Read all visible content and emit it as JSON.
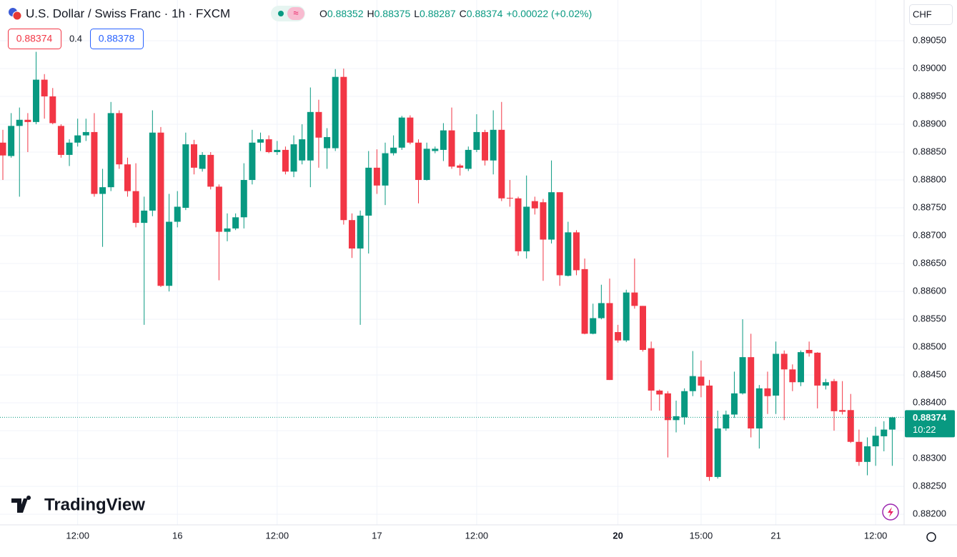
{
  "header": {
    "title": "U.S. Dollar / Swiss Franc · 1h · FXCM",
    "o": "O",
    "h": "H",
    "l": "L",
    "c": "C",
    "change": "+0.00022 (+0.02%)",
    "spread": 0.4,
    "ask": 0.88378,
    "currency": "CHF",
    "countdown": "10:22",
    "logo": "TradingView"
  },
  "chart_data": {
    "type": "candlestick",
    "up_color": "#089981",
    "down_color": "#f23645",
    "grid": true,
    "categories": [
      null,
      null,
      null,
      null,
      null,
      null,
      null,
      null,
      null,
      "12:00",
      null,
      null,
      null,
      null,
      null,
      null,
      null,
      null,
      null,
      null,
      null,
      "16",
      null,
      null,
      null,
      null,
      null,
      null,
      null,
      null,
      null,
      null,
      null,
      "12:00",
      null,
      null,
      null,
      null,
      null,
      null,
      null,
      null,
      null,
      null,
      null,
      "17",
      null,
      null,
      null,
      null,
      null,
      null,
      null,
      null,
      null,
      null,
      null,
      "12:00",
      null,
      null,
      null,
      null,
      null,
      null,
      null,
      null,
      null,
      null,
      null,
      null,
      null,
      null,
      null,
      null,
      "20",
      null,
      null,
      null,
      null,
      null,
      null,
      null,
      null,
      null,
      "15:00",
      null,
      null,
      null,
      null,
      null,
      null,
      null,
      null,
      "21",
      null,
      null,
      null,
      null,
      null,
      null,
      null,
      null,
      null,
      null,
      null,
      "12:00",
      null,
      null
    ],
    "open": [
      0.88867,
      0.88843,
      0.88897,
      0.88908,
      0.88904,
      0.8898,
      0.8895,
      0.88897,
      0.88845,
      0.88867,
      0.8888,
      0.88886,
      0.88775,
      0.88787,
      0.8892,
      0.88828,
      0.8878,
      0.88723,
      0.88745,
      0.88885,
      0.8861,
      0.88725,
      0.8875,
      0.88864,
      0.8882,
      0.88845,
      0.88788,
      0.88707,
      0.88713,
      0.88733,
      0.888,
      0.88867,
      0.88873,
      0.8885,
      0.88854,
      0.88815,
      0.88835,
      0.88835,
      0.88922,
      0.88857,
      0.88857,
      0.88985,
      0.88728,
      0.88677,
      0.88736,
      0.88822,
      0.8879,
      0.88848,
      0.88858,
      0.88912,
      0.88867,
      0.888,
      0.88852,
      0.88854,
      0.88889,
      0.88826,
      0.8882,
      0.88854,
      0.88886,
      0.88835,
      0.8889,
      0.88768,
      0.88767,
      0.88672,
      0.88762,
      0.8876,
      0.88693,
      0.88778,
      0.88628,
      0.88706,
      0.8864,
      0.88524,
      0.88552,
      0.88579,
      0.88527,
      0.88512,
      0.88598,
      0.88574,
      0.88498,
      0.88422,
      0.88417,
      0.88369,
      0.88374,
      0.88421,
      0.88447,
      0.88431,
      0.88267,
      0.88354,
      0.88379,
      0.88417,
      0.88482,
      0.88354,
      0.88426,
      0.88413,
      0.88488,
      0.8846,
      0.88437,
      0.88495,
      0.8849,
      0.88431,
      0.88439,
      0.88387,
      0.88387,
      0.8833,
      0.88294,
      0.88322,
      0.8834,
      0.88352
    ],
    "high": [
      0.8889,
      0.8892,
      0.8893,
      0.8892,
      0.8903,
      0.8899,
      0.88965,
      0.889,
      0.88873,
      0.8891,
      0.8891,
      0.8892,
      0.8882,
      0.8894,
      0.88925,
      0.8884,
      0.8883,
      0.8877,
      0.88925,
      0.88895,
      0.88775,
      0.8878,
      0.88885,
      0.88872,
      0.8885,
      0.8885,
      0.88792,
      0.8874,
      0.8874,
      0.8883,
      0.8889,
      0.88885,
      0.8888,
      0.8887,
      0.8886,
      0.8888,
      0.889,
      0.88966,
      0.88944,
      0.88893,
      0.88999,
      0.89,
      0.8874,
      0.88745,
      0.88852,
      0.88855,
      0.88867,
      0.8888,
      0.88915,
      0.88916,
      0.88873,
      0.88867,
      0.8886,
      0.88902,
      0.8893,
      0.88829,
      0.8886,
      0.88918,
      0.8889,
      0.88925,
      0.8894,
      0.888,
      0.8877,
      0.88808,
      0.8877,
      0.88766,
      0.88835,
      0.88778,
      0.88725,
      0.8871,
      0.88659,
      0.88578,
      0.88612,
      0.88623,
      0.8854,
      0.88603,
      0.88659,
      0.88574,
      0.8851,
      0.88424,
      0.88421,
      0.88404,
      0.88426,
      0.88493,
      0.88476,
      0.88441,
      0.88386,
      0.88386,
      0.88456,
      0.8855,
      0.88524,
      0.88432,
      0.88456,
      0.8851,
      0.88494,
      0.88469,
      0.88494,
      0.8851,
      0.88491,
      0.88443,
      0.88443,
      0.88439,
      0.88416,
      0.88352,
      0.88338,
      0.88357,
      0.88367,
      0.88375
    ],
    "low": [
      0.888,
      0.8884,
      0.8877,
      0.8885,
      0.889,
      0.8891,
      0.889,
      0.8884,
      0.88825,
      0.8886,
      0.8887,
      0.8877,
      0.8868,
      0.8878,
      0.8882,
      0.8877,
      0.88715,
      0.8854,
      0.88735,
      0.88608,
      0.886,
      0.88715,
      0.88746,
      0.8881,
      0.88815,
      0.88783,
      0.8862,
      0.8869,
      0.8871,
      0.88713,
      0.88792,
      0.88852,
      0.88848,
      0.88845,
      0.8881,
      0.88805,
      0.88828,
      0.88787,
      0.88822,
      0.8882,
      0.88852,
      0.8872,
      0.8866,
      0.8854,
      0.88668,
      0.88775,
      0.88755,
      0.88844,
      0.88854,
      0.88864,
      0.88758,
      0.88799,
      0.88848,
      0.88834,
      0.8882,
      0.88808,
      0.88816,
      0.8885,
      0.88826,
      0.8881,
      0.88762,
      0.88752,
      0.88664,
      0.88659,
      0.88738,
      0.88619,
      0.88686,
      0.8861,
      0.88627,
      0.88629,
      0.88523,
      0.88523,
      0.8855,
      0.88441,
      0.88508,
      0.88509,
      0.88569,
      0.88492,
      0.88386,
      0.88386,
      0.88302,
      0.88347,
      0.88361,
      0.88412,
      0.8841,
      0.8826,
      0.88264,
      0.8835,
      0.88373,
      0.88415,
      0.88338,
      0.88318,
      0.8838,
      0.8838,
      0.88369,
      0.88421,
      0.8843,
      0.88483,
      0.8839,
      0.88424,
      0.8835,
      0.88379,
      0.88328,
      0.88287,
      0.8827,
      0.88287,
      0.88313,
      0.88287
    ],
    "close": [
      0.88844,
      0.88897,
      0.88908,
      0.88904,
      0.8898,
      0.8895,
      0.88902,
      0.88845,
      0.88867,
      0.8888,
      0.88886,
      0.88775,
      0.88787,
      0.8892,
      0.88828,
      0.8878,
      0.88723,
      0.88745,
      0.88885,
      0.8861,
      0.88725,
      0.88752,
      0.88864,
      0.88822,
      0.88845,
      0.88788,
      0.88707,
      0.88713,
      0.88733,
      0.888,
      0.88867,
      0.88873,
      0.8885,
      0.88854,
      0.88815,
      0.88864,
      0.88873,
      0.88922,
      0.88876,
      0.88877,
      0.88985,
      0.88728,
      0.88677,
      0.88736,
      0.88822,
      0.8879,
      0.88848,
      0.88858,
      0.88912,
      0.88867,
      0.888,
      0.88856,
      0.88856,
      0.88889,
      0.88824,
      0.88822,
      0.88854,
      0.88886,
      0.88835,
      0.8889,
      0.88767,
      0.88767,
      0.88672,
      0.88752,
      0.88749,
      0.88693,
      0.88778,
      0.88629,
      0.88706,
      0.88638,
      0.88524,
      0.88552,
      0.88579,
      0.88441,
      0.88512,
      0.88598,
      0.88574,
      0.88495,
      0.88422,
      0.88415,
      0.88369,
      0.88376,
      0.88421,
      0.88448,
      0.88431,
      0.88267,
      0.88354,
      0.88379,
      0.88417,
      0.88482,
      0.88354,
      0.88426,
      0.88412,
      0.88488,
      0.8846,
      0.88437,
      0.88491,
      0.88489,
      0.88431,
      0.88437,
      0.88385,
      0.88384,
      0.8833,
      0.88294,
      0.88322,
      0.88341,
      0.88352,
      0.88374
    ],
    "ylim": [
      0.88181,
      0.89123
    ],
    "yticks": [
      {
        "value": 0.882,
        "label": "0.88200"
      },
      {
        "value": 0.8825,
        "label": "0.88250"
      },
      {
        "value": 0.883,
        "label": "0.88300"
      },
      {
        "value": 0.8835,
        "label": "0.88350"
      },
      {
        "value": 0.884,
        "label": "0.88400"
      },
      {
        "value": 0.8845,
        "label": "0.88450"
      },
      {
        "value": 0.885,
        "label": "0.88500"
      },
      {
        "value": 0.8855,
        "label": "0.88550"
      },
      {
        "value": 0.886,
        "label": "0.88600"
      },
      {
        "value": 0.8865,
        "label": "0.88650"
      },
      {
        "value": 0.887,
        "label": "0.88700"
      },
      {
        "value": 0.8875,
        "label": "0.88750"
      },
      {
        "value": 0.888,
        "label": "0.88800"
      },
      {
        "value": 0.8885,
        "label": "0.88850"
      },
      {
        "value": 0.889,
        "label": "0.88900"
      },
      {
        "value": 0.8895,
        "label": "0.88950"
      },
      {
        "value": 0.89,
        "label": "0.89000"
      },
      {
        "value": 0.8905,
        "label": "0.89050"
      }
    ]
  }
}
